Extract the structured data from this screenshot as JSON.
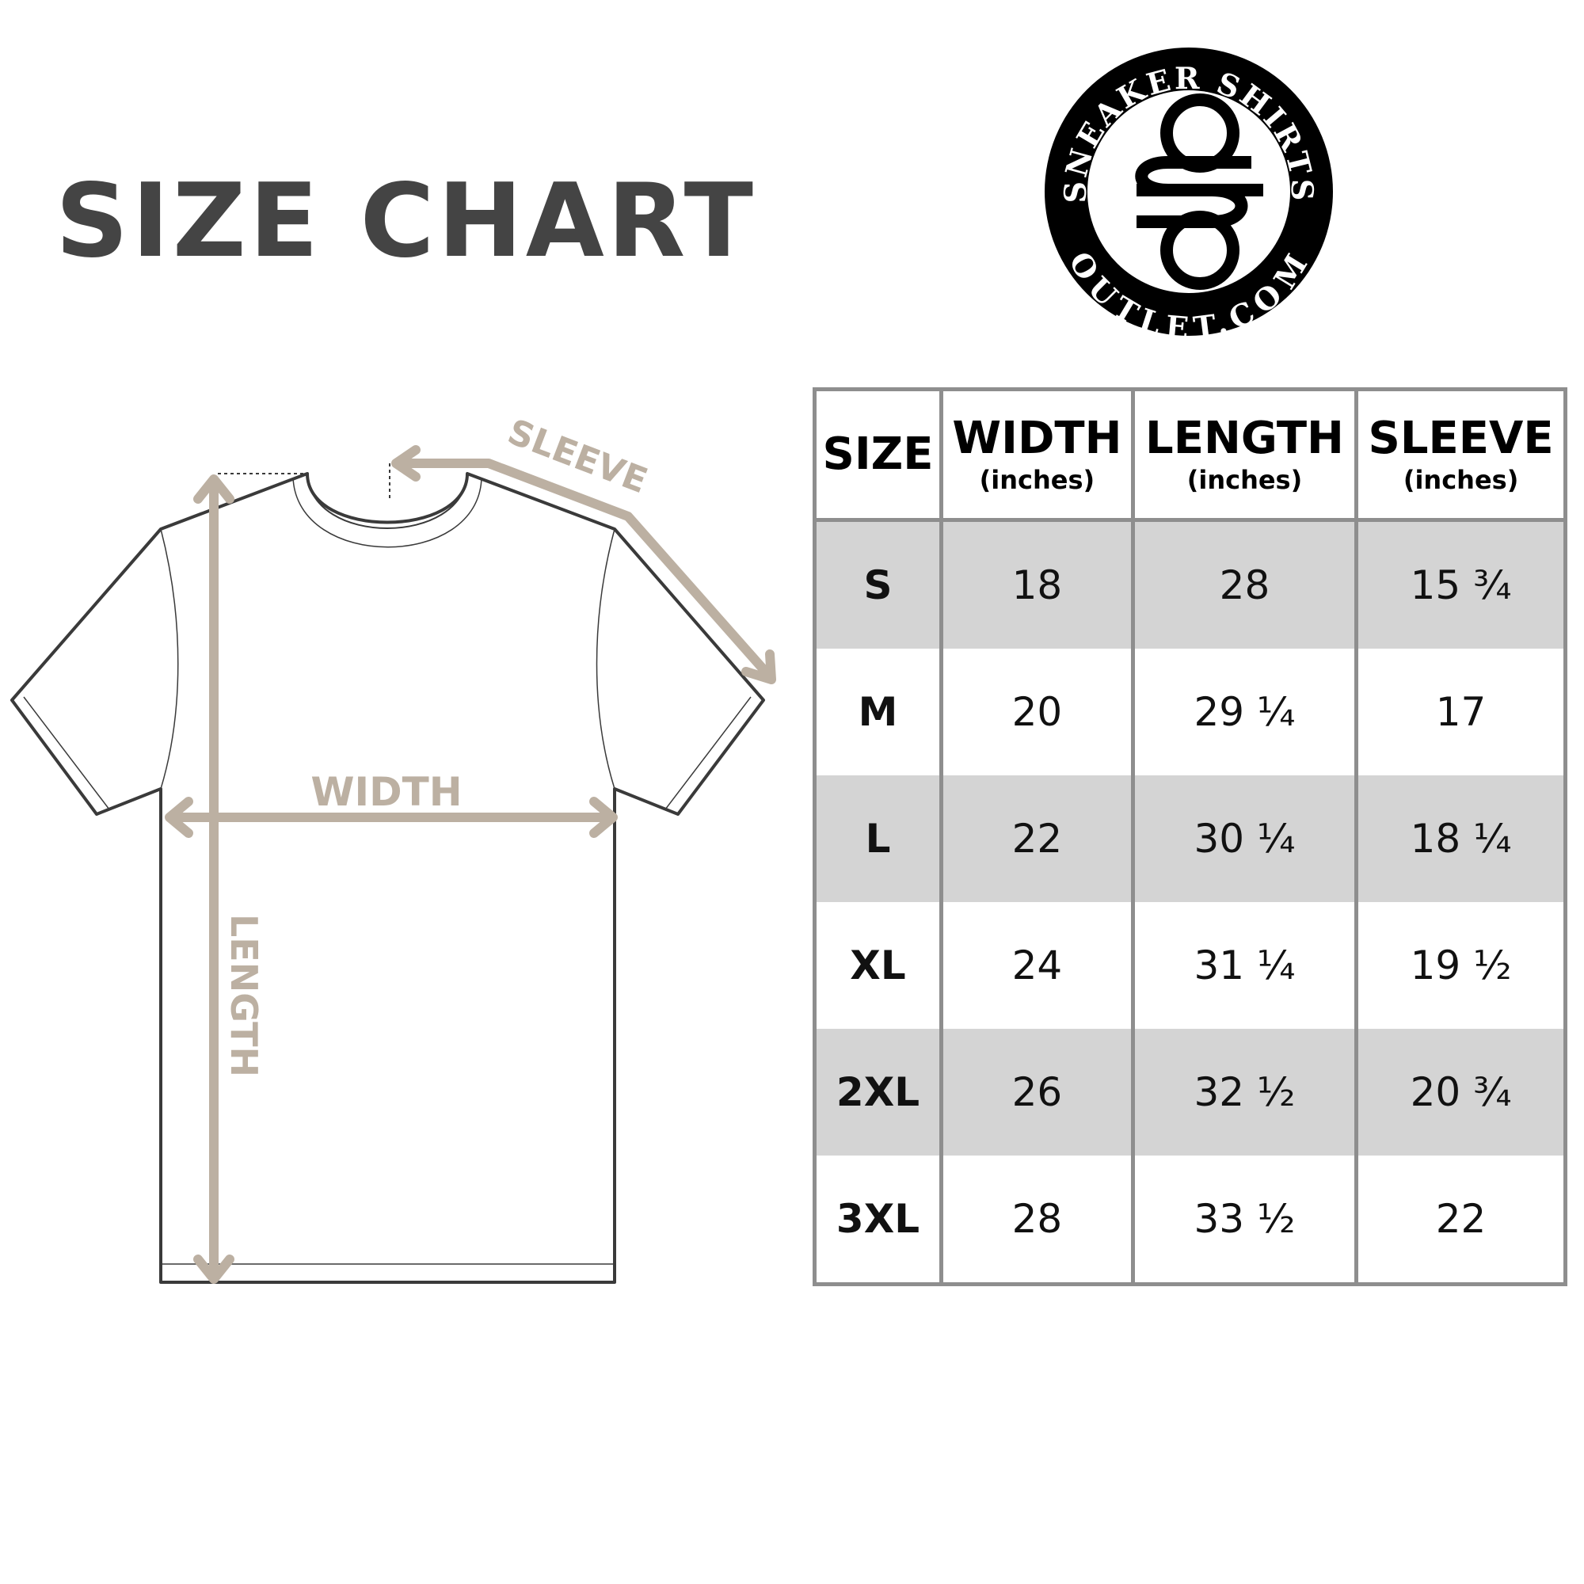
{
  "title": "SIZE CHART",
  "logo": {
    "top_text": "SNEAKER SHIRTS",
    "bottom_text": "OUTLET.COM",
    "monogram": "SO"
  },
  "diagram": {
    "sleeve_label": "SLEEVE",
    "width_label": "WIDTH",
    "length_label": "LENGTH",
    "arrow_color": "#bcb0a2",
    "outline_color": "#3a3a3a"
  },
  "table": {
    "headers": [
      {
        "label": "SIZE",
        "unit": ""
      },
      {
        "label": "WIDTH",
        "unit": "(inches)"
      },
      {
        "label": "LENGTH",
        "unit": "(inches)"
      },
      {
        "label": "SLEEVE",
        "unit": "(inches)"
      }
    ],
    "rows": [
      [
        "S",
        "18",
        "28",
        "15 ¾"
      ],
      [
        "M",
        "20",
        "29 ¼",
        "17"
      ],
      [
        "L",
        "22",
        "30 ¼",
        "18 ¼"
      ],
      [
        "XL",
        "24",
        "31 ¼",
        "19 ½"
      ],
      [
        "2XL",
        "26",
        "32 ½",
        "20 ¾"
      ],
      [
        "3XL",
        "28",
        "33 ½",
        "22"
      ]
    ],
    "shade_color": "#d4d4d4",
    "border_color": "#8e8e8e"
  }
}
